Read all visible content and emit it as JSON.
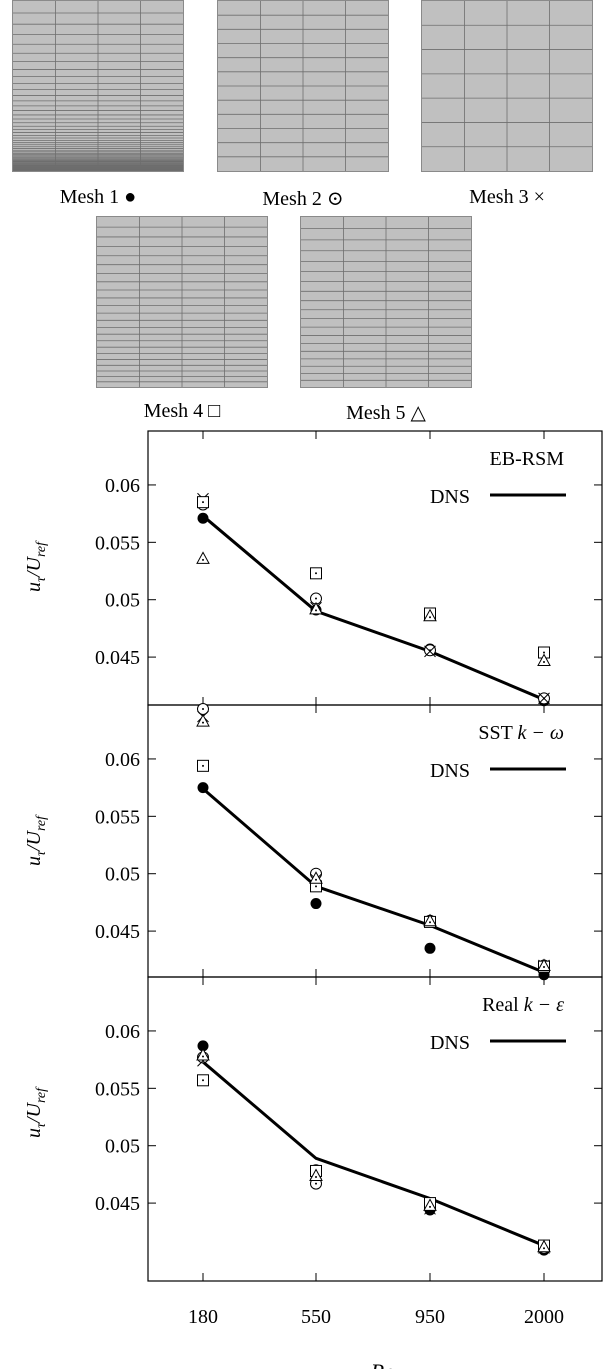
{
  "meshes": [
    {
      "label": "Mesh 1 ●",
      "symbol": "filled-circle",
      "h_lines": 62,
      "v_lines": 3
    },
    {
      "label": "Mesh 2 ⊙",
      "symbol": "dotted-circle",
      "h_lines": 11,
      "v_lines": 3
    },
    {
      "label": "Mesh 3 ×",
      "symbol": "cross",
      "h_lines": 6,
      "v_lines": 3
    },
    {
      "label": "Mesh 4 □",
      "symbol": "square",
      "h_lines": 22,
      "v_lines": 3
    },
    {
      "label": "Mesh 5 △",
      "symbol": "triangle",
      "h_lines": 18,
      "v_lines": 3
    }
  ],
  "chart_data": [
    {
      "type": "scatter",
      "model_label": "EB-RSM",
      "legend": "DNS",
      "ylabel": "u_τ/U_ref",
      "yticks": [
        "0.045",
        "0.05",
        "0.055",
        "0.06"
      ],
      "ylim": [
        0.041,
        0.0647
      ],
      "categories": [
        "180",
        "550",
        "950",
        "2000"
      ],
      "dns": [
        0.0573,
        0.049,
        0.0455,
        0.0413
      ],
      "series": [
        {
          "symbol": "filled-circle",
          "values": [
            0.0571,
            0.0491,
            0.0457,
            0.0412
          ]
        },
        {
          "symbol": "dotted-circle",
          "values": [
            0.0583,
            0.0501,
            0.0456,
            0.0414
          ]
        },
        {
          "symbol": "cross",
          "values": [
            0.0588,
            0.0493,
            0.0455,
            0.0414
          ]
        },
        {
          "symbol": "square",
          "values": [
            0.0585,
            0.0523,
            0.0488,
            0.0454
          ]
        },
        {
          "symbol": "triangle",
          "values": [
            0.0536,
            0.0492,
            0.0486,
            0.0447
          ]
        }
      ]
    },
    {
      "type": "scatter",
      "model_label": "SST k − ω",
      "legend": "DNS",
      "ylabel": "u_τ/U_ref",
      "yticks": [
        "0.045",
        "0.05",
        "0.055",
        "0.06"
      ],
      "ylim": [
        0.041,
        0.0647
      ],
      "categories": [
        "180",
        "550",
        "950",
        "2000"
      ],
      "dns": [
        0.0574,
        0.0489,
        0.0455,
        0.0414
      ],
      "series": [
        {
          "symbol": "filled-circle",
          "values": [
            0.0575,
            0.0474,
            0.0435,
            0.0412
          ]
        },
        {
          "symbol": "dotted-circle",
          "values": [
            0.0653,
            0.05,
            0.0459,
            0.042
          ]
        },
        {
          "symbol": "cross",
          "values": [
            0.0637,
            0.0495,
            0.0458,
            0.042
          ]
        },
        {
          "symbol": "square",
          "values": [
            0.0594,
            0.0489,
            0.0458,
            0.0419
          ]
        },
        {
          "symbol": "triangle",
          "values": [
            0.0633,
            0.0496,
            0.0459,
            0.042
          ]
        }
      ]
    },
    {
      "type": "scatter",
      "model_label": "Real k − ε",
      "legend": "DNS",
      "ylabel": "u_τ/U_ref",
      "yticks": [
        "0.045",
        "0.05",
        "0.055",
        "0.06"
      ],
      "ylim": [
        0.041,
        0.0647
      ],
      "xlabel": "Re_τ",
      "categories": [
        "180",
        "550",
        "950",
        "2000"
      ],
      "dns": [
        0.0573,
        0.0489,
        0.0454,
        0.0413
      ],
      "series": [
        {
          "symbol": "filled-circle",
          "values": [
            0.0587,
            0.0479,
            0.0444,
            0.0409
          ]
        },
        {
          "symbol": "dotted-circle",
          "values": [
            0.0577,
            0.0467,
            0.0448,
            0.0411
          ]
        },
        {
          "symbol": "cross",
          "values": [
            0.0574,
            0.0476,
            0.0445,
            0.0411
          ]
        },
        {
          "symbol": "square",
          "values": [
            0.0557,
            0.0478,
            0.045,
            0.0413
          ]
        },
        {
          "symbol": "triangle",
          "values": [
            0.0579,
            0.0474,
            0.0448,
            0.0412
          ]
        }
      ]
    }
  ]
}
